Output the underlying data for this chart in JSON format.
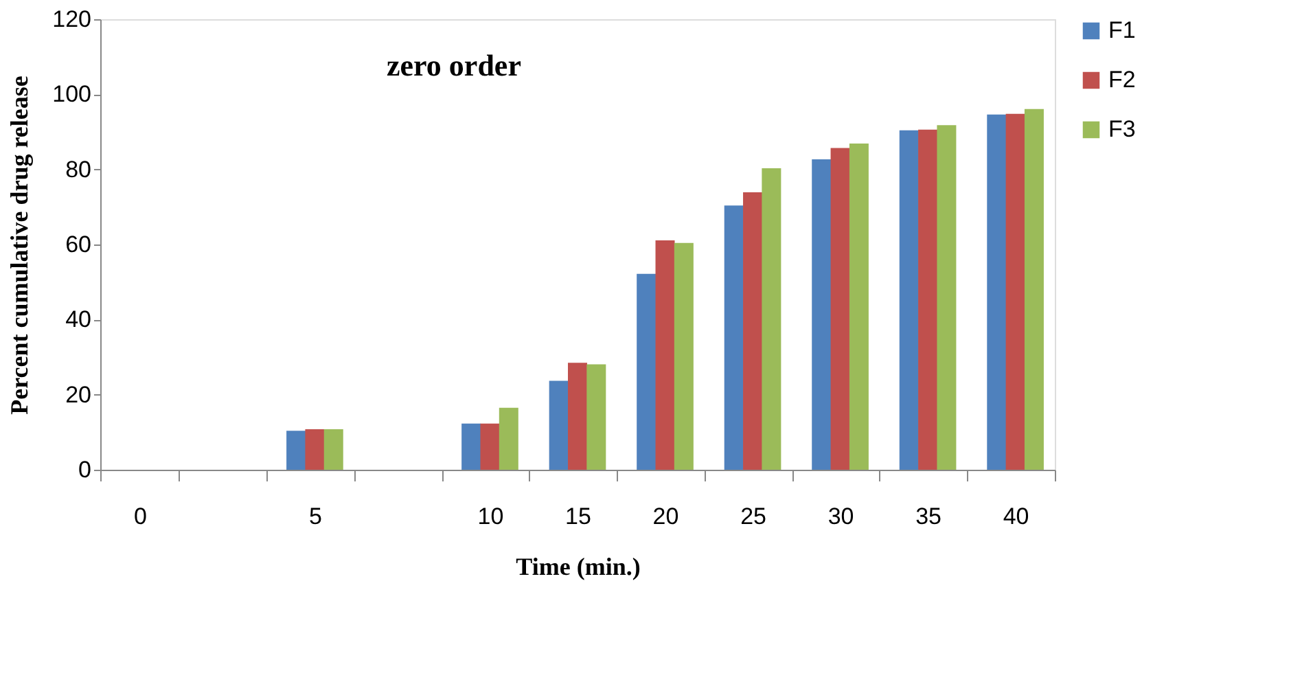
{
  "chart_data": {
    "type": "bar",
    "title": "zero order",
    "xlabel": "Time (min.)",
    "ylabel": "Percent cumulative drug release",
    "categories": [
      "0",
      null,
      "5",
      null,
      "10",
      "15",
      "20",
      "25",
      "30",
      "35",
      "40"
    ],
    "series": [
      {
        "name": "F1",
        "color": "#4f81bd",
        "values": [
          0,
          null,
          10.4,
          null,
          12.3,
          23.7,
          52.2,
          70.4,
          82.7,
          90.4,
          94.6
        ]
      },
      {
        "name": "F2",
        "color": "#c0504d",
        "values": [
          0,
          null,
          10.8,
          null,
          12.3,
          28.5,
          61.1,
          73.9,
          85.7,
          90.6,
          94.8
        ]
      },
      {
        "name": "F3",
        "color": "#9bbb59",
        "values": [
          0,
          null,
          10.8,
          null,
          16.5,
          28.1,
          60.4,
          80.3,
          86.9,
          91.8,
          96.1
        ]
      }
    ],
    "ylim": [
      0,
      120
    ],
    "yticks": [
      0,
      20,
      40,
      60,
      80,
      100,
      120
    ],
    "grid": false,
    "legend": "right"
  }
}
